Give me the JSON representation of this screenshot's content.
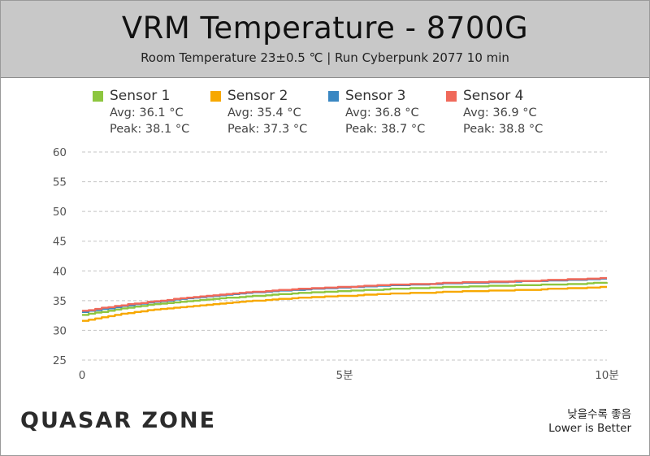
{
  "header": {
    "title": "VRM Temperature - 8700G",
    "subtitle": "Room Temperature 23±0.5 ℃  |  Run Cyberpunk 2077 10 min"
  },
  "legend": [
    {
      "name": "Sensor 1",
      "avg": "Avg: 36.1 °C",
      "peak": "Peak: 38.1 °C",
      "color": "#8dc63f"
    },
    {
      "name": "Sensor 2",
      "avg": "Avg: 35.4 °C",
      "peak": "Peak: 37.3 °C",
      "color": "#f7a800"
    },
    {
      "name": "Sensor 3",
      "avg": "Avg: 36.8 °C",
      "peak": "Peak: 38.7 °C",
      "color": "#3a87c2"
    },
    {
      "name": "Sensor 4",
      "avg": "Avg: 36.9 °C",
      "peak": "Peak: 38.8 °C",
      "color": "#f0695a"
    }
  ],
  "chart_data": {
    "type": "line",
    "x": [
      0,
      0.5,
      1,
      1.5,
      2,
      2.5,
      3,
      3.5,
      4,
      4.5,
      5,
      5.5,
      6,
      6.5,
      7,
      7.5,
      8,
      8.5,
      9,
      9.5,
      10
    ],
    "series": [
      {
        "name": "Sensor 1",
        "color": "#8dc63f",
        "values": [
          32.6,
          33.3,
          34.0,
          34.5,
          34.9,
          35.3,
          35.6,
          35.9,
          36.2,
          36.4,
          36.6,
          36.8,
          37.0,
          37.1,
          37.3,
          37.4,
          37.5,
          37.6,
          37.7,
          37.8,
          38.1
        ]
      },
      {
        "name": "Sensor 2",
        "color": "#f7a800",
        "values": [
          31.6,
          32.4,
          33.1,
          33.6,
          34.0,
          34.4,
          34.8,
          35.1,
          35.4,
          35.6,
          35.8,
          36.0,
          36.2,
          36.3,
          36.5,
          36.6,
          36.7,
          36.8,
          37.0,
          37.1,
          37.3
        ]
      },
      {
        "name": "Sensor 3",
        "color": "#3a87c2",
        "values": [
          33.1,
          33.7,
          34.4,
          34.9,
          35.4,
          35.8,
          36.2,
          36.5,
          36.8,
          37.0,
          37.2,
          37.4,
          37.6,
          37.7,
          37.9,
          38.0,
          38.1,
          38.3,
          38.4,
          38.5,
          38.7
        ]
      },
      {
        "name": "Sensor 4",
        "color": "#f0695a",
        "values": [
          33.3,
          33.9,
          34.5,
          35.0,
          35.5,
          35.9,
          36.3,
          36.6,
          36.9,
          37.1,
          37.3,
          37.5,
          37.7,
          37.8,
          38.0,
          38.1,
          38.2,
          38.3,
          38.5,
          38.6,
          38.8
        ]
      }
    ],
    "ylim": [
      25,
      60
    ],
    "yticks": [
      "25",
      "30",
      "35",
      "40",
      "45",
      "50",
      "55",
      "60"
    ],
    "xticks": [
      {
        "value": 0,
        "label": "0"
      },
      {
        "value": 5,
        "label": "5분"
      },
      {
        "value": 10,
        "label": "10분"
      }
    ],
    "xlim": [
      0,
      10
    ],
    "grid": true,
    "legend_position": "top"
  },
  "footer": {
    "note_ko": "낮을수록 좋음",
    "note_en": "Lower is Better",
    "logo": "QUASAR ZONE"
  }
}
